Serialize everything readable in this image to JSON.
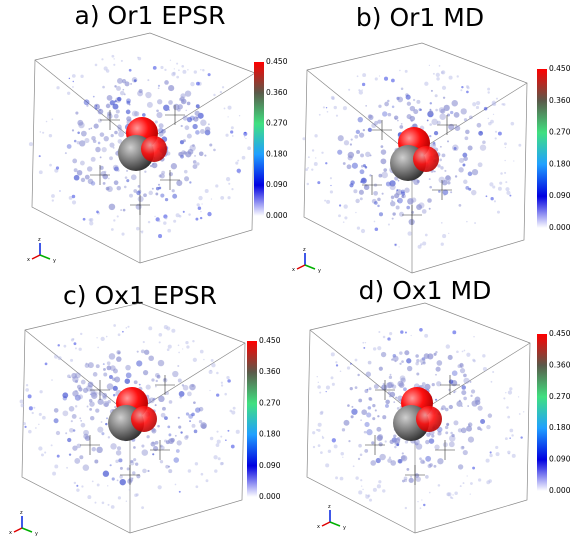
{
  "panels": [
    {
      "title": "a) Or1 EPSR",
      "colorbar_ticks": [
        "0.450",
        "0.360",
        "0.270",
        "0.180",
        "0.090",
        "0.000"
      ],
      "axes": [
        "z",
        "x",
        "y"
      ]
    },
    {
      "title": "b) Or1 MD",
      "colorbar_ticks": [
        "0.450",
        "0.360",
        "0.270",
        "0.180",
        "0.090",
        "0.000"
      ],
      "axes": [
        "z",
        "x",
        "y"
      ]
    },
    {
      "title": "c) Ox1 EPSR",
      "colorbar_ticks": [
        "0.450",
        "0.360",
        "0.270",
        "0.180",
        "0.090",
        "0.000"
      ],
      "axes": [
        "z",
        "x",
        "y"
      ]
    },
    {
      "title": "d) Ox1 MD",
      "colorbar_ticks": [
        "0.450",
        "0.360",
        "0.270",
        "0.180",
        "0.090",
        "0.000"
      ],
      "axes": [
        "z",
        "x",
        "y"
      ]
    }
  ]
}
